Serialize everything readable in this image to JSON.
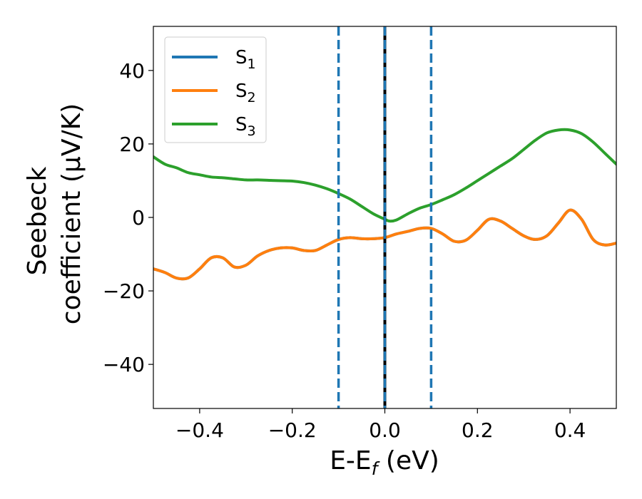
{
  "chart_data": {
    "type": "line",
    "xlabel_main": "E-E",
    "xlabel_sub": "f",
    "xlabel_unit": " (eV)",
    "ylabel_line1": "Seebeck",
    "ylabel_line2": "coefficient  (μV/K)",
    "xlim": [
      -0.5,
      0.5
    ],
    "ylim": [
      -52,
      52
    ],
    "x_ticks": [
      -0.4,
      -0.2,
      0.0,
      0.2,
      0.4
    ],
    "x_tick_labels": [
      "−0.4",
      "−0.2",
      "0.0",
      "0.2",
      "0.4"
    ],
    "y_ticks": [
      -40,
      -20,
      0,
      20,
      40
    ],
    "y_tick_labels": [
      "−40",
      "−20",
      "0",
      "20",
      "40"
    ],
    "grid": false,
    "legend_position": "top-left",
    "series": [
      {
        "name": "S",
        "subscript": "1",
        "color": "#1f77b4",
        "x": [
          -0.5,
          -0.475,
          -0.45,
          -0.425,
          -0.4,
          -0.375,
          -0.35,
          -0.325,
          -0.3,
          -0.275,
          -0.25,
          -0.225,
          -0.2,
          -0.175,
          -0.15,
          -0.125,
          -0.1,
          -0.075,
          -0.05,
          -0.025,
          0.0,
          0.025,
          0.05,
          0.075,
          0.1,
          0.125,
          0.15,
          0.175,
          0.2,
          0.225,
          0.25,
          0.275,
          0.3,
          0.325,
          0.35,
          0.375,
          0.4,
          0.425,
          0.45,
          0.475,
          0.5
        ],
        "y": [
          -14,
          -15,
          -16.5,
          -16.5,
          -14,
          -11,
          -11,
          -13.5,
          -13,
          -10.5,
          -9,
          -8.3,
          -8.3,
          -9,
          -9,
          -7.5,
          -6,
          -5.5,
          -5.8,
          -5.8,
          -5.5,
          -4.5,
          -3.8,
          -3,
          -3,
          -4.5,
          -6.5,
          -6.2,
          -3.5,
          -0.5,
          -1,
          -3,
          -5,
          -6,
          -5,
          -1.5,
          2,
          -0.5,
          -6,
          -7.5,
          -7
        ]
      },
      {
        "name": "S",
        "subscript": "2",
        "color": "#ff7f0e",
        "x": [
          -0.5,
          -0.475,
          -0.45,
          -0.425,
          -0.4,
          -0.375,
          -0.35,
          -0.325,
          -0.3,
          -0.275,
          -0.25,
          -0.225,
          -0.2,
          -0.175,
          -0.15,
          -0.125,
          -0.1,
          -0.075,
          -0.05,
          -0.025,
          0.0,
          0.025,
          0.05,
          0.075,
          0.1,
          0.125,
          0.15,
          0.175,
          0.2,
          0.225,
          0.25,
          0.275,
          0.3,
          0.325,
          0.35,
          0.375,
          0.4,
          0.425,
          0.45,
          0.475,
          0.5
        ],
        "y": [
          -14,
          -15,
          -16.5,
          -16.5,
          -14,
          -11,
          -11,
          -13.5,
          -13,
          -10.5,
          -9,
          -8.3,
          -8.3,
          -9,
          -9,
          -7.5,
          -6,
          -5.5,
          -5.8,
          -5.8,
          -5.5,
          -4.5,
          -3.8,
          -3,
          -3,
          -4.5,
          -6.5,
          -6.2,
          -3.5,
          -0.5,
          -1,
          -3,
          -5,
          -6,
          -5,
          -1.5,
          2,
          -0.5,
          -6,
          -7.5,
          -7
        ]
      },
      {
        "name": "S",
        "subscript": "3",
        "color": "#2ca02c",
        "x": [
          -0.5,
          -0.475,
          -0.45,
          -0.425,
          -0.4,
          -0.375,
          -0.35,
          -0.325,
          -0.3,
          -0.275,
          -0.25,
          -0.225,
          -0.2,
          -0.175,
          -0.15,
          -0.125,
          -0.1,
          -0.075,
          -0.05,
          -0.025,
          0.0,
          0.01,
          0.025,
          0.05,
          0.075,
          0.1,
          0.125,
          0.15,
          0.175,
          0.2,
          0.225,
          0.25,
          0.275,
          0.3,
          0.325,
          0.35,
          0.375,
          0.4,
          0.425,
          0.45,
          0.475,
          0.5
        ],
        "y": [
          16.5,
          14.5,
          13.5,
          12.2,
          11.6,
          11,
          10.8,
          10.5,
          10.2,
          10.2,
          10.1,
          10,
          9.9,
          9.5,
          8.8,
          7.8,
          6.5,
          5,
          3,
          1,
          -0.5,
          -1,
          -0.7,
          1,
          2.5,
          3.5,
          4.8,
          6.2,
          8,
          10,
          12,
          14,
          16,
          18.5,
          21,
          23,
          23.8,
          23.8,
          22.8,
          20.5,
          17.5,
          14.5
        ]
      }
    ],
    "vlines": [
      {
        "x": -0.1,
        "color": "#1f77b4",
        "style": "dashed"
      },
      {
        "x": 0.1,
        "color": "#1f77b4",
        "style": "dashed"
      },
      {
        "x": 0.0,
        "color": "#000000",
        "style": "solid"
      },
      {
        "x": 0.0,
        "color": "#1f77b4",
        "style": "dashed"
      }
    ]
  }
}
